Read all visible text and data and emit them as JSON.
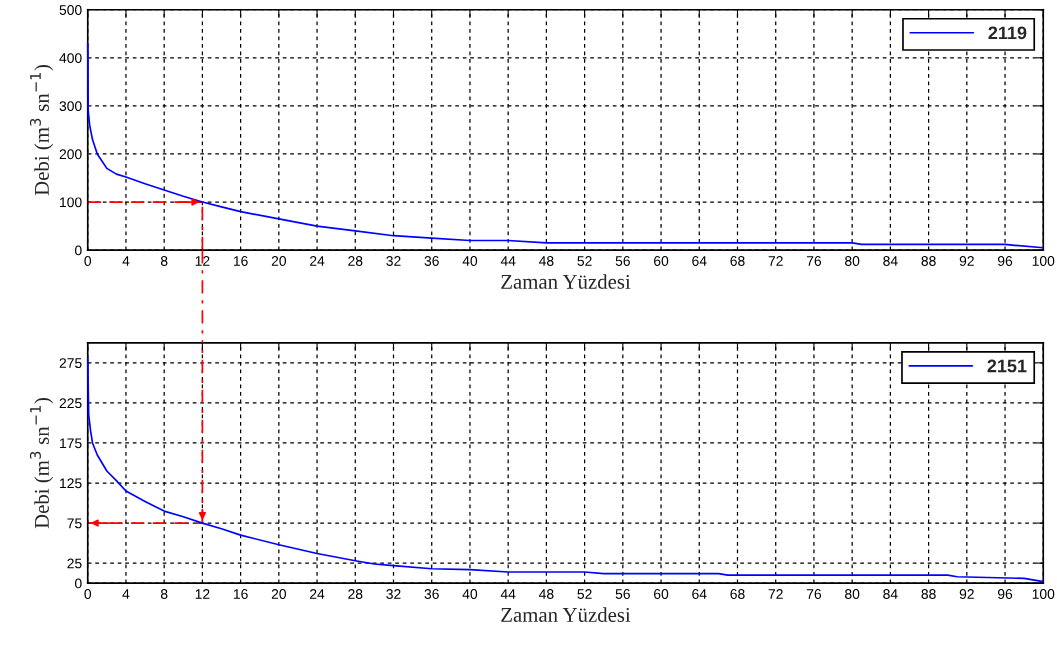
{
  "chart_data": [
    {
      "type": "line",
      "xlabel": "Zaman Yüzdesi",
      "ylabel": "Debi (m$^{3}$ sn$^{−1}$)",
      "xlim": [
        0,
        100
      ],
      "ylim": [
        0,
        500
      ],
      "xticks": [
        0,
        4,
        8,
        12,
        16,
        20,
        24,
        28,
        32,
        36,
        40,
        44,
        48,
        52,
        56,
        60,
        64,
        68,
        72,
        76,
        80,
        84,
        88,
        92,
        96,
        100
      ],
      "yticks": [
        0,
        100,
        200,
        300,
        400,
        500
      ],
      "grid": true,
      "legend": "top right",
      "line_style": "solid",
      "series": [
        {
          "name": "2119",
          "color": "#0000ff",
          "x": [
            0,
            0.05,
            0.2,
            0.5,
            1,
            2,
            3,
            4,
            6,
            8,
            10,
            12,
            14,
            16,
            20,
            24,
            28,
            32,
            36,
            40,
            44,
            48,
            60,
            80,
            81,
            96,
            97,
            100
          ],
          "values": [
            430,
            290,
            260,
            230,
            200,
            170,
            158,
            152,
            138,
            125,
            112,
            100,
            90,
            80,
            65,
            50,
            40,
            30,
            25,
            20,
            20,
            15,
            15,
            15,
            12,
            12,
            10,
            5
          ]
        }
      ],
      "ref_lines": [
        {
          "axis": "y",
          "value": 100,
          "color": "#ff0000",
          "line_style": "dashed"
        },
        {
          "axis": "x",
          "value": 12,
          "color": "#ff0000",
          "line_style": "dashed"
        }
      ]
    },
    {
      "type": "line",
      "xlabel": "Zaman Yüzdesi",
      "ylabel": "Debi (m$^{3}$ sn$^{−1}$)",
      "xlim": [
        0,
        100
      ],
      "ylim": [
        0,
        300
      ],
      "xticks": [
        0,
        4,
        8,
        12,
        16,
        20,
        24,
        28,
        32,
        36,
        40,
        44,
        48,
        52,
        56,
        60,
        64,
        68,
        72,
        76,
        80,
        84,
        88,
        92,
        96,
        100
      ],
      "yticks": [
        0,
        25,
        75,
        125,
        175,
        225,
        275
      ],
      "grid": true,
      "legend": "top right",
      "line_style": "solid",
      "series": [
        {
          "name": "2151",
          "color": "#0000ff",
          "x": [
            0,
            0.1,
            0.3,
            0.5,
            1,
            2,
            3,
            4,
            6,
            8,
            10,
            12,
            14,
            16,
            20,
            24,
            28,
            30,
            32,
            36,
            40,
            44,
            52,
            54,
            66,
            67,
            90,
            91,
            98,
            100
          ],
          "values": [
            280,
            210,
            190,
            175,
            160,
            140,
            128,
            115,
            102,
            90,
            83,
            75,
            68,
            60,
            48,
            37,
            28,
            24,
            22,
            18,
            17,
            14,
            14,
            12,
            12,
            10,
            10,
            8,
            6,
            2
          ]
        }
      ],
      "ref_lines": [
        {
          "axis": "y",
          "value": 75,
          "color": "#ff0000",
          "line_style": "dashed"
        },
        {
          "axis": "x",
          "value": 12,
          "color": "#ff0000",
          "line_style": "dashed"
        }
      ]
    }
  ]
}
